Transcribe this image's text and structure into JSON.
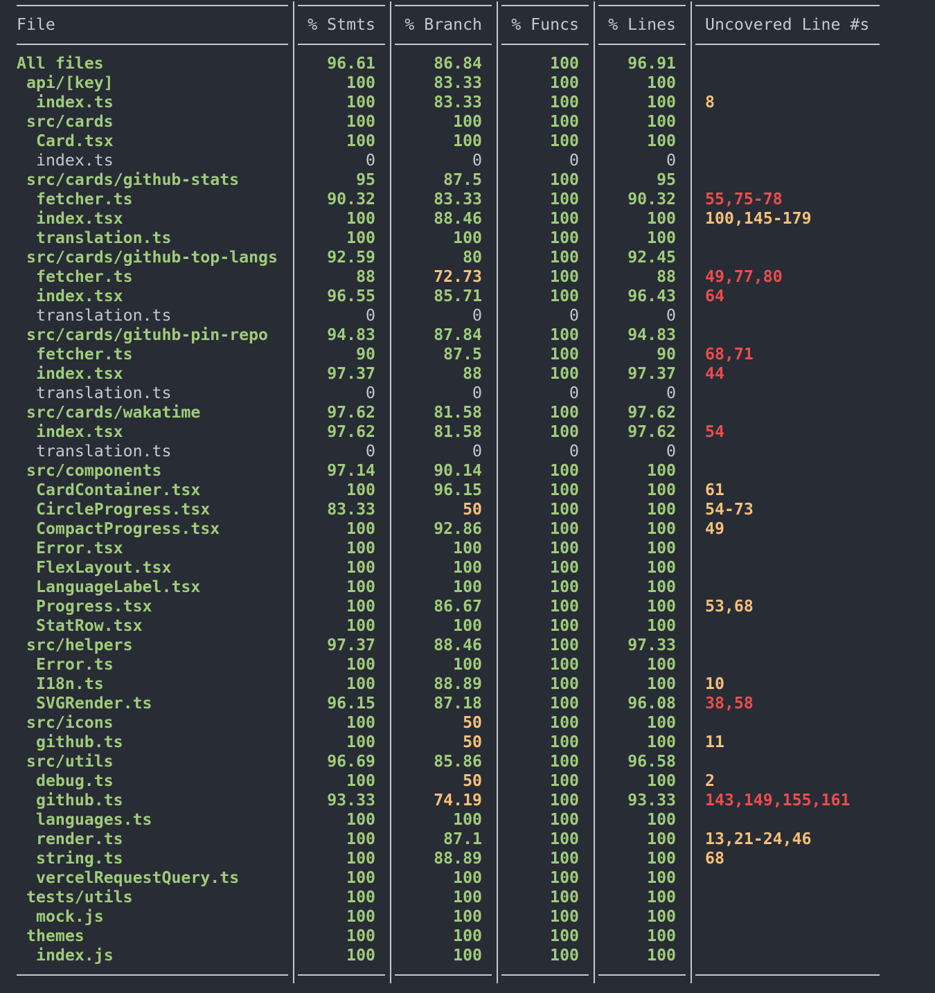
{
  "headers": {
    "file": "File",
    "stmts": "% Stmts",
    "branch": "% Branch",
    "funcs": "% Funcs",
    "lines": "% Lines",
    "uncovered": "Uncovered Line #s"
  },
  "colors": {
    "background": "#282c35",
    "green": "#9fcc7a",
    "yellow": "#f5c07a",
    "red": "#ee4c4c",
    "gray": "#c5c8cf"
  },
  "rows": [
    {
      "file": "All files",
      "indent": 0,
      "stmts": "96.61",
      "branch": "86.84",
      "funcs": "100",
      "lines": "96.91",
      "uncovered": "",
      "fileColor": "g",
      "stmtsColor": "g",
      "branchColor": "g",
      "funcsColor": "g",
      "linesColor": "g",
      "uncColor": ""
    },
    {
      "file": "api/[key]",
      "indent": 1,
      "stmts": "100",
      "branch": "83.33",
      "funcs": "100",
      "lines": "100",
      "uncovered": "",
      "fileColor": "g",
      "stmtsColor": "g",
      "branchColor": "g",
      "funcsColor": "g",
      "linesColor": "g",
      "uncColor": ""
    },
    {
      "file": "index.ts",
      "indent": 2,
      "stmts": "100",
      "branch": "83.33",
      "funcs": "100",
      "lines": "100",
      "uncovered": "8",
      "fileColor": "g",
      "stmtsColor": "g",
      "branchColor": "g",
      "funcsColor": "g",
      "linesColor": "g",
      "uncColor": "y"
    },
    {
      "file": "src/cards",
      "indent": 1,
      "stmts": "100",
      "branch": "100",
      "funcs": "100",
      "lines": "100",
      "uncovered": "",
      "fileColor": "g",
      "stmtsColor": "g",
      "branchColor": "g",
      "funcsColor": "g",
      "linesColor": "g",
      "uncColor": ""
    },
    {
      "file": "Card.tsx",
      "indent": 2,
      "stmts": "100",
      "branch": "100",
      "funcs": "100",
      "lines": "100",
      "uncovered": "",
      "fileColor": "g",
      "stmtsColor": "g",
      "branchColor": "g",
      "funcsColor": "g",
      "linesColor": "g",
      "uncColor": ""
    },
    {
      "file": "index.ts",
      "indent": 2,
      "stmts": "0",
      "branch": "0",
      "funcs": "0",
      "lines": "0",
      "uncovered": "",
      "fileColor": "w",
      "stmtsColor": "w",
      "branchColor": "w",
      "funcsColor": "w",
      "linesColor": "w",
      "uncColor": ""
    },
    {
      "file": "src/cards/github-stats",
      "indent": 1,
      "stmts": "95",
      "branch": "87.5",
      "funcs": "100",
      "lines": "95",
      "uncovered": "",
      "fileColor": "g",
      "stmtsColor": "g",
      "branchColor": "g",
      "funcsColor": "g",
      "linesColor": "g",
      "uncColor": ""
    },
    {
      "file": "fetcher.ts",
      "indent": 2,
      "stmts": "90.32",
      "branch": "83.33",
      "funcs": "100",
      "lines": "90.32",
      "uncovered": "55,75-78",
      "fileColor": "g",
      "stmtsColor": "g",
      "branchColor": "g",
      "funcsColor": "g",
      "linesColor": "g",
      "uncColor": "r"
    },
    {
      "file": "index.tsx",
      "indent": 2,
      "stmts": "100",
      "branch": "88.46",
      "funcs": "100",
      "lines": "100",
      "uncovered": "100,145-179",
      "fileColor": "g",
      "stmtsColor": "g",
      "branchColor": "g",
      "funcsColor": "g",
      "linesColor": "g",
      "uncColor": "y"
    },
    {
      "file": "translation.ts",
      "indent": 2,
      "stmts": "100",
      "branch": "100",
      "funcs": "100",
      "lines": "100",
      "uncovered": "",
      "fileColor": "g",
      "stmtsColor": "g",
      "branchColor": "g",
      "funcsColor": "g",
      "linesColor": "g",
      "uncColor": ""
    },
    {
      "file": "src/cards/github-top-langs",
      "indent": 1,
      "stmts": "92.59",
      "branch": "80",
      "funcs": "100",
      "lines": "92.45",
      "uncovered": "",
      "fileColor": "g",
      "stmtsColor": "g",
      "branchColor": "g",
      "funcsColor": "g",
      "linesColor": "g",
      "uncColor": ""
    },
    {
      "file": "fetcher.ts",
      "indent": 2,
      "stmts": "88",
      "branch": "72.73",
      "funcs": "100",
      "lines": "88",
      "uncovered": "49,77,80",
      "fileColor": "g",
      "stmtsColor": "g",
      "branchColor": "y",
      "funcsColor": "g",
      "linesColor": "g",
      "uncColor": "r"
    },
    {
      "file": "index.tsx",
      "indent": 2,
      "stmts": "96.55",
      "branch": "85.71",
      "funcs": "100",
      "lines": "96.43",
      "uncovered": "64",
      "fileColor": "g",
      "stmtsColor": "g",
      "branchColor": "g",
      "funcsColor": "g",
      "linesColor": "g",
      "uncColor": "r"
    },
    {
      "file": "translation.ts",
      "indent": 2,
      "stmts": "0",
      "branch": "0",
      "funcs": "0",
      "lines": "0",
      "uncovered": "",
      "fileColor": "w",
      "stmtsColor": "w",
      "branchColor": "w",
      "funcsColor": "w",
      "linesColor": "w",
      "uncColor": ""
    },
    {
      "file": "src/cards/gituhb-pin-repo",
      "indent": 1,
      "stmts": "94.83",
      "branch": "87.84",
      "funcs": "100",
      "lines": "94.83",
      "uncovered": "",
      "fileColor": "g",
      "stmtsColor": "g",
      "branchColor": "g",
      "funcsColor": "g",
      "linesColor": "g",
      "uncColor": ""
    },
    {
      "file": "fetcher.ts",
      "indent": 2,
      "stmts": "90",
      "branch": "87.5",
      "funcs": "100",
      "lines": "90",
      "uncovered": "68,71",
      "fileColor": "g",
      "stmtsColor": "g",
      "branchColor": "g",
      "funcsColor": "g",
      "linesColor": "g",
      "uncColor": "r"
    },
    {
      "file": "index.tsx",
      "indent": 2,
      "stmts": "97.37",
      "branch": "88",
      "funcs": "100",
      "lines": "97.37",
      "uncovered": "44",
      "fileColor": "g",
      "stmtsColor": "g",
      "branchColor": "g",
      "funcsColor": "g",
      "linesColor": "g",
      "uncColor": "r"
    },
    {
      "file": "translation.ts",
      "indent": 2,
      "stmts": "0",
      "branch": "0",
      "funcs": "0",
      "lines": "0",
      "uncovered": "",
      "fileColor": "w",
      "stmtsColor": "w",
      "branchColor": "w",
      "funcsColor": "w",
      "linesColor": "w",
      "uncColor": ""
    },
    {
      "file": "src/cards/wakatime",
      "indent": 1,
      "stmts": "97.62",
      "branch": "81.58",
      "funcs": "100",
      "lines": "97.62",
      "uncovered": "",
      "fileColor": "g",
      "stmtsColor": "g",
      "branchColor": "g",
      "funcsColor": "g",
      "linesColor": "g",
      "uncColor": ""
    },
    {
      "file": "index.tsx",
      "indent": 2,
      "stmts": "97.62",
      "branch": "81.58",
      "funcs": "100",
      "lines": "97.62",
      "uncovered": "54",
      "fileColor": "g",
      "stmtsColor": "g",
      "branchColor": "g",
      "funcsColor": "g",
      "linesColor": "g",
      "uncColor": "r"
    },
    {
      "file": "translation.ts",
      "indent": 2,
      "stmts": "0",
      "branch": "0",
      "funcs": "0",
      "lines": "0",
      "uncovered": "",
      "fileColor": "w",
      "stmtsColor": "w",
      "branchColor": "w",
      "funcsColor": "w",
      "linesColor": "w",
      "uncColor": ""
    },
    {
      "file": "src/components",
      "indent": 1,
      "stmts": "97.14",
      "branch": "90.14",
      "funcs": "100",
      "lines": "100",
      "uncovered": "",
      "fileColor": "g",
      "stmtsColor": "g",
      "branchColor": "g",
      "funcsColor": "g",
      "linesColor": "g",
      "uncColor": ""
    },
    {
      "file": "CardContainer.tsx",
      "indent": 2,
      "stmts": "100",
      "branch": "96.15",
      "funcs": "100",
      "lines": "100",
      "uncovered": "61",
      "fileColor": "g",
      "stmtsColor": "g",
      "branchColor": "g",
      "funcsColor": "g",
      "linesColor": "g",
      "uncColor": "y"
    },
    {
      "file": "CircleProgress.tsx",
      "indent": 2,
      "stmts": "83.33",
      "branch": "50",
      "funcs": "100",
      "lines": "100",
      "uncovered": "54-73",
      "fileColor": "g",
      "stmtsColor": "g",
      "branchColor": "y",
      "funcsColor": "g",
      "linesColor": "g",
      "uncColor": "y"
    },
    {
      "file": "CompactProgress.tsx",
      "indent": 2,
      "stmts": "100",
      "branch": "92.86",
      "funcs": "100",
      "lines": "100",
      "uncovered": "49",
      "fileColor": "g",
      "stmtsColor": "g",
      "branchColor": "g",
      "funcsColor": "g",
      "linesColor": "g",
      "uncColor": "y"
    },
    {
      "file": "Error.tsx",
      "indent": 2,
      "stmts": "100",
      "branch": "100",
      "funcs": "100",
      "lines": "100",
      "uncovered": "",
      "fileColor": "g",
      "stmtsColor": "g",
      "branchColor": "g",
      "funcsColor": "g",
      "linesColor": "g",
      "uncColor": ""
    },
    {
      "file": "FlexLayout.tsx",
      "indent": 2,
      "stmts": "100",
      "branch": "100",
      "funcs": "100",
      "lines": "100",
      "uncovered": "",
      "fileColor": "g",
      "stmtsColor": "g",
      "branchColor": "g",
      "funcsColor": "g",
      "linesColor": "g",
      "uncColor": ""
    },
    {
      "file": "LanguageLabel.tsx",
      "indent": 2,
      "stmts": "100",
      "branch": "100",
      "funcs": "100",
      "lines": "100",
      "uncovered": "",
      "fileColor": "g",
      "stmtsColor": "g",
      "branchColor": "g",
      "funcsColor": "g",
      "linesColor": "g",
      "uncColor": ""
    },
    {
      "file": "Progress.tsx",
      "indent": 2,
      "stmts": "100",
      "branch": "86.67",
      "funcs": "100",
      "lines": "100",
      "uncovered": "53,68",
      "fileColor": "g",
      "stmtsColor": "g",
      "branchColor": "g",
      "funcsColor": "g",
      "linesColor": "g",
      "uncColor": "y"
    },
    {
      "file": "StatRow.tsx",
      "indent": 2,
      "stmts": "100",
      "branch": "100",
      "funcs": "100",
      "lines": "100",
      "uncovered": "",
      "fileColor": "g",
      "stmtsColor": "g",
      "branchColor": "g",
      "funcsColor": "g",
      "linesColor": "g",
      "uncColor": ""
    },
    {
      "file": "src/helpers",
      "indent": 1,
      "stmts": "97.37",
      "branch": "88.46",
      "funcs": "100",
      "lines": "97.33",
      "uncovered": "",
      "fileColor": "g",
      "stmtsColor": "g",
      "branchColor": "g",
      "funcsColor": "g",
      "linesColor": "g",
      "uncColor": ""
    },
    {
      "file": "Error.ts",
      "indent": 2,
      "stmts": "100",
      "branch": "100",
      "funcs": "100",
      "lines": "100",
      "uncovered": "",
      "fileColor": "g",
      "stmtsColor": "g",
      "branchColor": "g",
      "funcsColor": "g",
      "linesColor": "g",
      "uncColor": ""
    },
    {
      "file": "I18n.ts",
      "indent": 2,
      "stmts": "100",
      "branch": "88.89",
      "funcs": "100",
      "lines": "100",
      "uncovered": "10",
      "fileColor": "g",
      "stmtsColor": "g",
      "branchColor": "g",
      "funcsColor": "g",
      "linesColor": "g",
      "uncColor": "y"
    },
    {
      "file": "SVGRender.ts",
      "indent": 2,
      "stmts": "96.15",
      "branch": "87.18",
      "funcs": "100",
      "lines": "96.08",
      "uncovered": "38,58",
      "fileColor": "g",
      "stmtsColor": "g",
      "branchColor": "g",
      "funcsColor": "g",
      "linesColor": "g",
      "uncColor": "r"
    },
    {
      "file": "src/icons",
      "indent": 1,
      "stmts": "100",
      "branch": "50",
      "funcs": "100",
      "lines": "100",
      "uncovered": "",
      "fileColor": "g",
      "stmtsColor": "g",
      "branchColor": "y",
      "funcsColor": "g",
      "linesColor": "g",
      "uncColor": ""
    },
    {
      "file": "github.ts",
      "indent": 2,
      "stmts": "100",
      "branch": "50",
      "funcs": "100",
      "lines": "100",
      "uncovered": "11",
      "fileColor": "g",
      "stmtsColor": "g",
      "branchColor": "y",
      "funcsColor": "g",
      "linesColor": "g",
      "uncColor": "y"
    },
    {
      "file": "src/utils",
      "indent": 1,
      "stmts": "96.69",
      "branch": "85.86",
      "funcs": "100",
      "lines": "96.58",
      "uncovered": "",
      "fileColor": "g",
      "stmtsColor": "g",
      "branchColor": "g",
      "funcsColor": "g",
      "linesColor": "g",
      "uncColor": ""
    },
    {
      "file": "debug.ts",
      "indent": 2,
      "stmts": "100",
      "branch": "50",
      "funcs": "100",
      "lines": "100",
      "uncovered": "2",
      "fileColor": "g",
      "stmtsColor": "g",
      "branchColor": "y",
      "funcsColor": "g",
      "linesColor": "g",
      "uncColor": "y"
    },
    {
      "file": "github.ts",
      "indent": 2,
      "stmts": "93.33",
      "branch": "74.19",
      "funcs": "100",
      "lines": "93.33",
      "uncovered": "143,149,155,161",
      "fileColor": "g",
      "stmtsColor": "g",
      "branchColor": "y",
      "funcsColor": "g",
      "linesColor": "g",
      "uncColor": "r"
    },
    {
      "file": "languages.ts",
      "indent": 2,
      "stmts": "100",
      "branch": "100",
      "funcs": "100",
      "lines": "100",
      "uncovered": "",
      "fileColor": "g",
      "stmtsColor": "g",
      "branchColor": "g",
      "funcsColor": "g",
      "linesColor": "g",
      "uncColor": ""
    },
    {
      "file": "render.ts",
      "indent": 2,
      "stmts": "100",
      "branch": "87.1",
      "funcs": "100",
      "lines": "100",
      "uncovered": "13,21-24,46",
      "fileColor": "g",
      "stmtsColor": "g",
      "branchColor": "g",
      "funcsColor": "g",
      "linesColor": "g",
      "uncColor": "y"
    },
    {
      "file": "string.ts",
      "indent": 2,
      "stmts": "100",
      "branch": "88.89",
      "funcs": "100",
      "lines": "100",
      "uncovered": "68",
      "fileColor": "g",
      "stmtsColor": "g",
      "branchColor": "g",
      "funcsColor": "g",
      "linesColor": "g",
      "uncColor": "y"
    },
    {
      "file": "vercelRequestQuery.ts",
      "indent": 2,
      "stmts": "100",
      "branch": "100",
      "funcs": "100",
      "lines": "100",
      "uncovered": "",
      "fileColor": "g",
      "stmtsColor": "g",
      "branchColor": "g",
      "funcsColor": "g",
      "linesColor": "g",
      "uncColor": ""
    },
    {
      "file": "tests/utils",
      "indent": 1,
      "stmts": "100",
      "branch": "100",
      "funcs": "100",
      "lines": "100",
      "uncovered": "",
      "fileColor": "g",
      "stmtsColor": "g",
      "branchColor": "g",
      "funcsColor": "g",
      "linesColor": "g",
      "uncColor": ""
    },
    {
      "file": "mock.js",
      "indent": 2,
      "stmts": "100",
      "branch": "100",
      "funcs": "100",
      "lines": "100",
      "uncovered": "",
      "fileColor": "g",
      "stmtsColor": "g",
      "branchColor": "g",
      "funcsColor": "g",
      "linesColor": "g",
      "uncColor": ""
    },
    {
      "file": "themes",
      "indent": 1,
      "stmts": "100",
      "branch": "100",
      "funcs": "100",
      "lines": "100",
      "uncovered": "",
      "fileColor": "g",
      "stmtsColor": "g",
      "branchColor": "g",
      "funcsColor": "g",
      "linesColor": "g",
      "uncColor": ""
    },
    {
      "file": "index.js",
      "indent": 2,
      "stmts": "100",
      "branch": "100",
      "funcs": "100",
      "lines": "100",
      "uncovered": "",
      "fileColor": "g",
      "stmtsColor": "g",
      "branchColor": "g",
      "funcsColor": "g",
      "linesColor": "g",
      "uncColor": ""
    }
  ]
}
